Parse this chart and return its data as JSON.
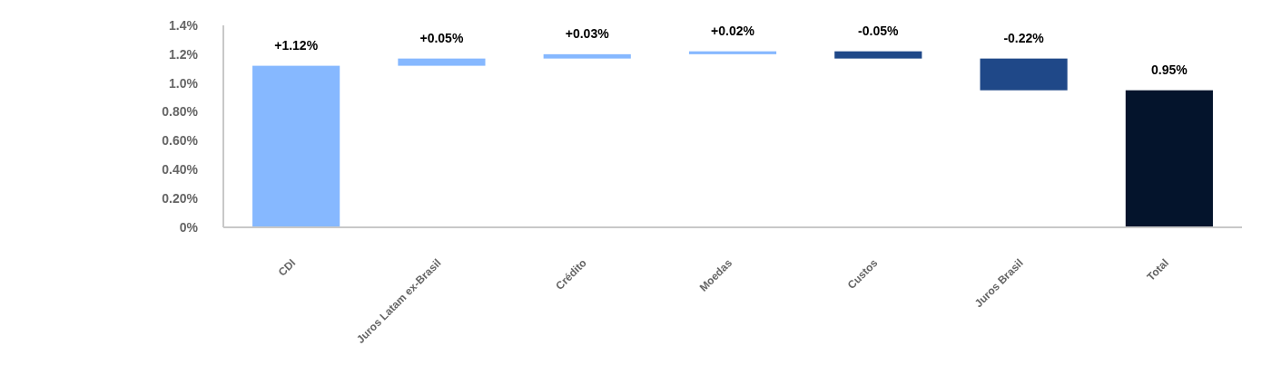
{
  "chart_data": {
    "type": "bar",
    "categories": [
      "CDI",
      "Juros Latam ex-Brasil",
      "Crédito",
      "Moedas",
      "Custos",
      "Juros Brasil",
      "Total"
    ],
    "values": [
      1.12,
      0.05,
      0.03,
      0.02,
      -0.05,
      -0.22,
      0.95
    ],
    "base": [
      0,
      1.12,
      1.17,
      1.2,
      1.22,
      1.17,
      0
    ],
    "colors": [
      "#86b8ff",
      "#86b8ff",
      "#86b8ff",
      "#86b8ff",
      "#1f4888",
      "#1f4888",
      "#04142c"
    ],
    "value_labels": [
      "+1.12%",
      "+0.05%",
      "+0.03%",
      "+0.02%",
      "-0.05%",
      "-0.22%",
      "0.95%"
    ],
    "ylim": [
      0,
      1.4
    ],
    "yticks": [
      {
        "value": 0,
        "label": "0%"
      },
      {
        "value": 0.2,
        "label": "0.20%"
      },
      {
        "value": 0.4,
        "label": "0.40%"
      },
      {
        "value": 0.6,
        "label": "0.60%"
      },
      {
        "value": 0.8,
        "label": "0.80%"
      },
      {
        "value": 1.0,
        "label": "1.0%"
      },
      {
        "value": 1.2,
        "label": "1.2%"
      },
      {
        "value": 1.4,
        "label": "1.4%"
      }
    ],
    "grid": false
  }
}
